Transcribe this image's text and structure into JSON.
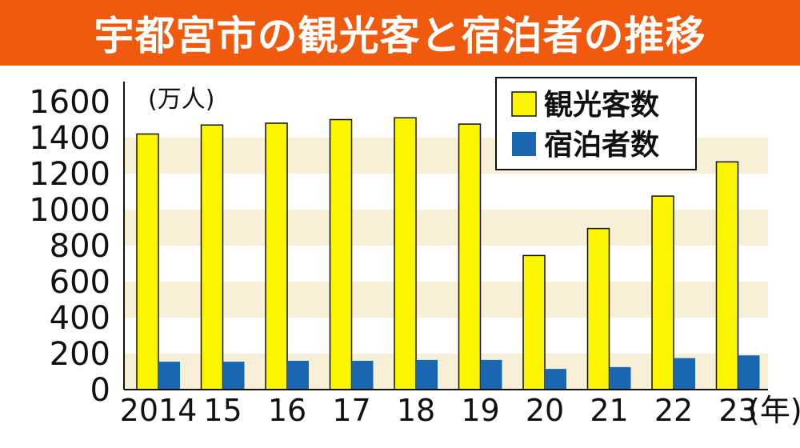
{
  "header": {
    "title": "宇都宮市の観光客と宿泊者の推移"
  },
  "colors": {
    "header_bg": "#f05a0e",
    "band": "#f7f0d7",
    "tourists": "#fbf500",
    "overnight": "#1b66b1"
  },
  "chart_data": {
    "type": "bar",
    "title": "宇都宮市の観光客と宿泊者の推移",
    "categories": [
      "2014",
      "15",
      "16",
      "17",
      "18",
      "19",
      "20",
      "21",
      "22",
      "23"
    ],
    "x_unit": "(年)",
    "y_unit": "(万人)",
    "ylim": [
      0,
      1600
    ],
    "yticks": [
      0,
      200,
      400,
      600,
      800,
      1000,
      1200,
      1400,
      1600
    ],
    "grid": "alternating horizontal bands",
    "legend_position": "top-right",
    "series": [
      {
        "name": "観光客数",
        "color": "#fbf500",
        "values": [
          1420,
          1470,
          1480,
          1500,
          1510,
          1475,
          745,
          895,
          1075,
          1265
        ]
      },
      {
        "name": "宿泊者数",
        "color": "#1b66b1",
        "values": [
          155,
          155,
          160,
          160,
          165,
          165,
          115,
          125,
          175,
          190
        ]
      }
    ]
  }
}
